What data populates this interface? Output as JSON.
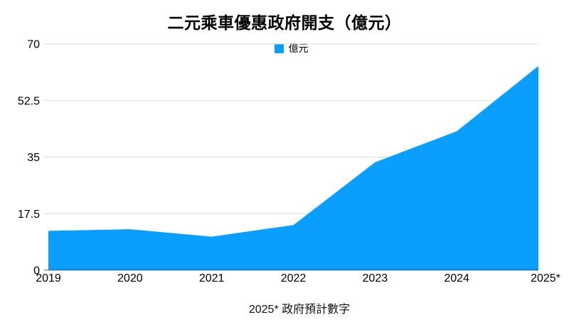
{
  "title": "二元乘車優惠政府開支（億元）",
  "legend": {
    "label": "億元"
  },
  "footnote": "2025* 政府預計數字",
  "colors": {
    "area": "#0a9fff",
    "gridline": "#d9d9d9",
    "axis_line": "#b3b3b3",
    "baseline_shadow": "rgba(0,0,0,0.25)",
    "text": "#000000"
  },
  "chart_data": {
    "type": "area",
    "categories": [
      "2019",
      "2020",
      "2021",
      "2022",
      "2023",
      "2024",
      "2025*"
    ],
    "series": [
      {
        "name": "億元",
        "values": [
          12.2,
          12.7,
          10.4,
          14.0,
          33.4,
          43.0,
          63.2
        ]
      }
    ],
    "title": "二元乘車優惠政府開支（億元）",
    "xlabel": "",
    "ylabel": "",
    "ylim": [
      0,
      70
    ],
    "yticks": [
      0,
      17.5,
      35,
      52.5,
      70
    ],
    "ytick_labels": [
      "0",
      "17.5",
      "35",
      "52.5",
      "70"
    ],
    "grid": true,
    "legend_position": "top-center",
    "annotation": "2025* 政府預計數字"
  }
}
